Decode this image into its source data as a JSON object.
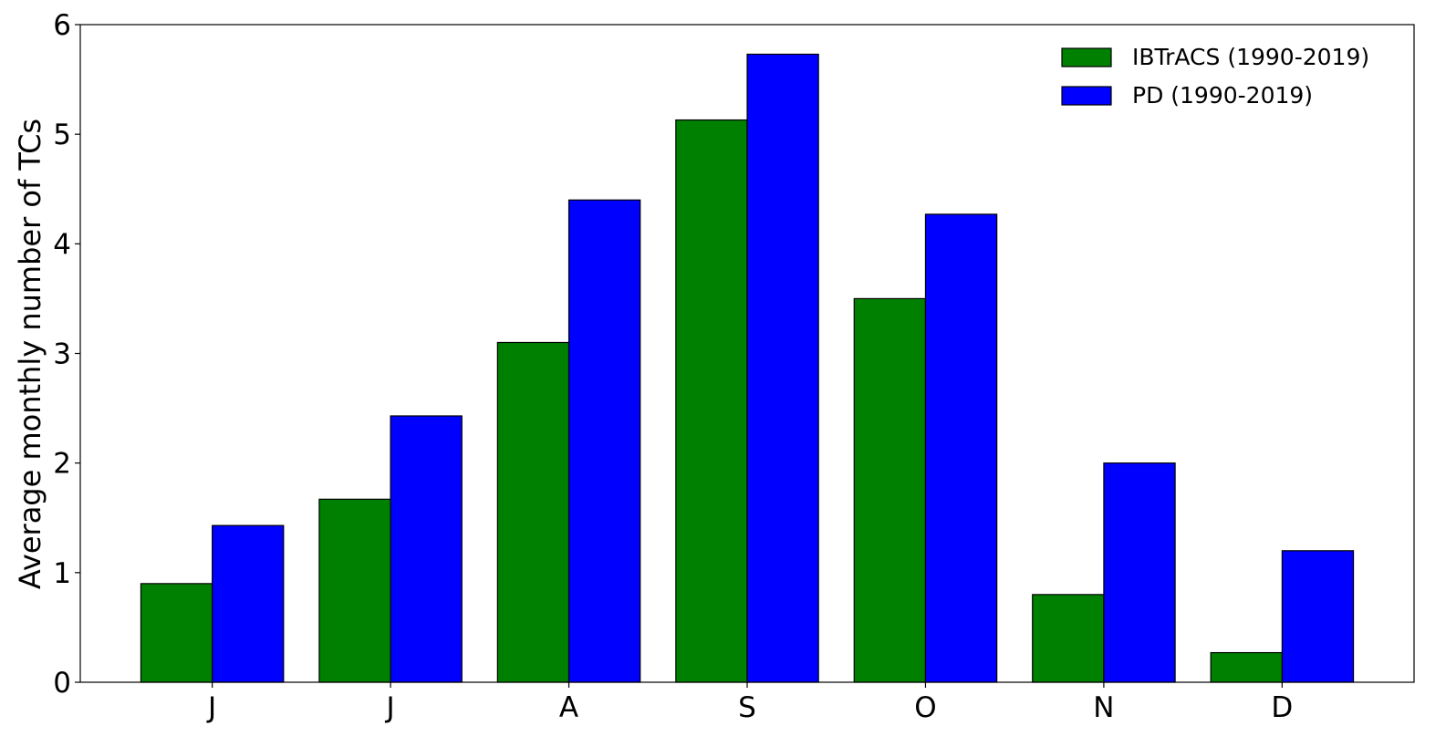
{
  "chart_data": {
    "type": "bar",
    "title": "",
    "xlabel": "",
    "ylabel": "Average monthly number of TCs",
    "categories": [
      "J",
      "J",
      "A",
      "S",
      "O",
      "N",
      "D"
    ],
    "series": [
      {
        "name": "IBTrACS (1990-2019)",
        "color": "#008000",
        "values": [
          0.9,
          1.67,
          3.1,
          5.13,
          3.5,
          0.8,
          0.27
        ]
      },
      {
        "name": "PD (1990-2019)",
        "color": "#0000ff",
        "values": [
          1.43,
          2.43,
          4.4,
          5.73,
          4.27,
          2.0,
          1.2
        ]
      }
    ],
    "ylim": [
      0,
      6
    ],
    "yticks": [
      "0",
      "1",
      "2",
      "3",
      "4",
      "5",
      "6"
    ],
    "grid": false,
    "legend": "top-right"
  }
}
